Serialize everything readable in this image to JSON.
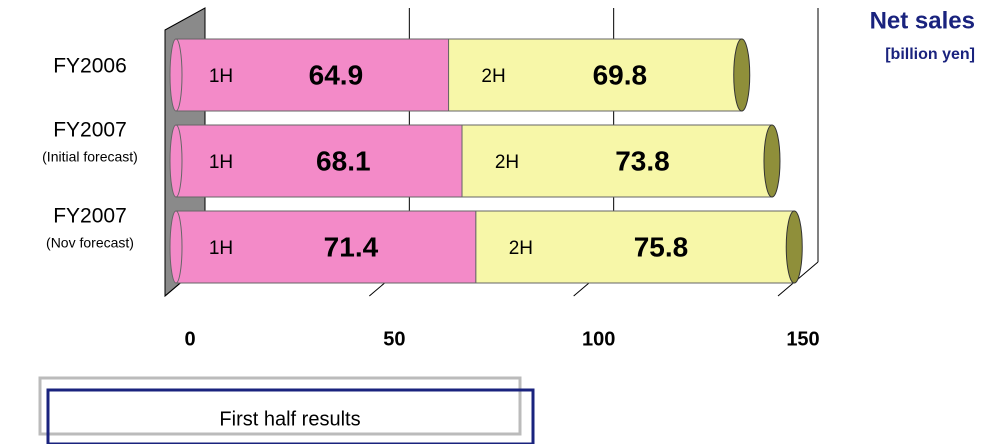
{
  "chart_data": {
    "type": "bar",
    "title": "Net sales",
    "subtitle": "[billion yen]",
    "categories": [
      "FY2006",
      "FY2007",
      "FY2007"
    ],
    "category_notes": [
      null,
      "(Initial forecast)",
      "(Nov forecast)"
    ],
    "series": [
      {
        "name": "1H",
        "color": "#f38ac8",
        "values": [
          64.9,
          68.1,
          71.4
        ]
      },
      {
        "name": "2H",
        "color": "#f7f7a8",
        "values": [
          69.8,
          73.8,
          75.8
        ]
      }
    ],
    "xlim": [
      0,
      150
    ],
    "xticks": [
      0,
      50,
      100,
      150
    ],
    "grid": true,
    "stacked": true,
    "orientation": "horizontal",
    "annotation": "First half results"
  }
}
